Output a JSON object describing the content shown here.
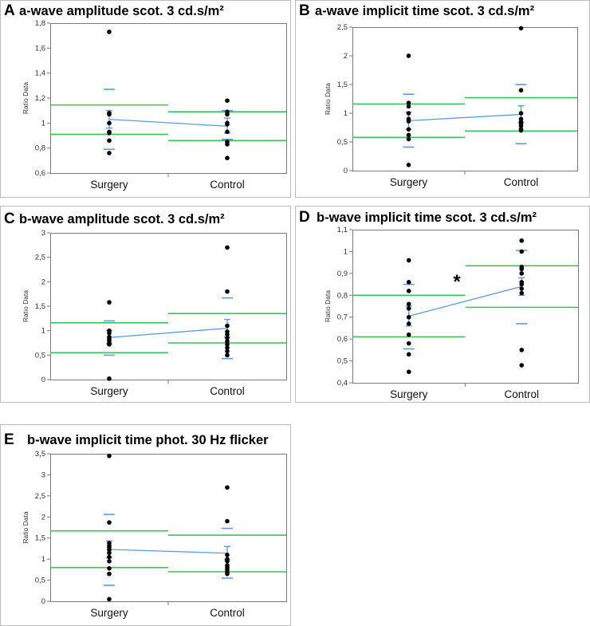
{
  "colors": {
    "green": "#3cc25a",
    "blue": "#5b9be6",
    "dot": "#000000",
    "axis": "#7a7a7a"
  },
  "chart_data": [
    {
      "id": "A",
      "letter": "A",
      "type": "scatter",
      "title": "a-wave amplitude scot. 3 cd.s/m²",
      "ylabel": "Ratio Data",
      "ylim": [
        0.6,
        1.8
      ],
      "yticks": [
        0.6,
        0.8,
        1,
        1.2,
        1.4,
        1.6,
        1.8
      ],
      "ytick_labels": [
        "0,6",
        "0,8",
        "1",
        "1,2",
        "1,4",
        "1,6",
        "1,8"
      ],
      "categories": [
        "Surgery",
        "Control"
      ],
      "points": [
        [
          1.73,
          1.08,
          1.07,
          1.0,
          0.93,
          0.92,
          0.86,
          0.76
        ],
        [
          1.18,
          1.09,
          1.07,
          1.0,
          0.99,
          0.93,
          0.85,
          0.83,
          0.72
        ]
      ],
      "means": [
        1.03,
        0.975
      ],
      "sem": [
        [
          0.96,
          1.1
        ],
        [
          0.92,
          1.04
        ]
      ],
      "sd": [
        [
          0.79,
          1.27
        ],
        [
          0.87,
          1.1
        ]
      ],
      "green": [
        [
          0.91,
          1.145
        ],
        [
          0.86,
          1.09
        ]
      ],
      "annotation": ""
    },
    {
      "id": "B",
      "letter": "B",
      "type": "scatter",
      "title": "a-wave implicit time scot. 3 cd.s/m²",
      "ylabel": "Ratio Data",
      "ylim": [
        0,
        2.5
      ],
      "yticks": [
        0,
        0.5,
        1,
        1.5,
        2,
        2.5
      ],
      "ytick_labels": [
        "0",
        "0,5",
        "1",
        "1,5",
        "2",
        "2,5"
      ],
      "categories": [
        "Surgery",
        "Control"
      ],
      "points": [
        [
          2.0,
          1.18,
          1.12,
          1.0,
          0.9,
          0.86,
          0.72,
          0.62,
          0.55,
          0.1
        ],
        [
          2.48,
          1.4,
          1.0,
          0.9,
          0.85,
          0.82,
          0.78,
          0.72,
          0.7
        ]
      ],
      "means": [
        0.87,
        0.98
      ],
      "sem": [
        [
          0.72,
          1.02
        ],
        [
          0.84,
          1.13
        ]
      ],
      "sd": [
        [
          0.41,
          1.33
        ],
        [
          0.47,
          1.5
        ]
      ],
      "green": [
        [
          0.58,
          1.16
        ],
        [
          0.69,
          1.27
        ]
      ],
      "annotation": ""
    },
    {
      "id": "C",
      "letter": "C",
      "type": "scatter",
      "title": "b-wave amplitude scot. 3 cd.s/m²",
      "ylabel": "Ratio Data",
      "ylim": [
        0,
        3
      ],
      "yticks": [
        0,
        0.5,
        1,
        1.5,
        2,
        2.5,
        3
      ],
      "ytick_labels": [
        "0",
        "0,5",
        "1",
        "1,5",
        "2",
        "2,5",
        "3"
      ],
      "categories": [
        "Surgery",
        "Control"
      ],
      "points": [
        [
          1.58,
          1.0,
          0.95,
          0.87,
          0.83,
          0.8,
          0.75,
          0.72,
          0.02
        ],
        [
          2.7,
          1.8,
          1.1,
          0.98,
          0.92,
          0.85,
          0.78,
          0.72,
          0.65,
          0.58,
          0.5
        ]
      ],
      "means": [
        0.86,
        1.05
      ],
      "sem": [
        [
          0.73,
          1.0
        ],
        [
          0.87,
          1.23
        ]
      ],
      "sd": [
        [
          0.5,
          1.2
        ],
        [
          0.43,
          1.67
        ]
      ],
      "green": [
        [
          0.55,
          1.16
        ],
        [
          0.75,
          1.35
        ]
      ],
      "annotation": ""
    },
    {
      "id": "D",
      "letter": "D",
      "type": "scatter",
      "title": "b-wave implicit time scot. 3 cd.s/m²",
      "ylabel": "Ratio Data",
      "ylim": [
        0.4,
        1.1
      ],
      "yticks": [
        0.4,
        0.5,
        0.6,
        0.7,
        0.8,
        0.9,
        1,
        1.1
      ],
      "ytick_labels": [
        "0,4",
        "0,5",
        "0,6",
        "0,7",
        "0,8",
        "0,9",
        "1",
        "1,1"
      ],
      "categories": [
        "Surgery",
        "Control"
      ],
      "points": [
        [
          0.96,
          0.86,
          0.82,
          0.76,
          0.74,
          0.7,
          0.67,
          0.62,
          0.58,
          0.53,
          0.45
        ],
        [
          1.05,
          1.0,
          0.93,
          0.92,
          0.9,
          0.86,
          0.85,
          0.83,
          0.81,
          0.55,
          0.48
        ]
      ],
      "means": [
        0.705,
        0.84
      ],
      "sem": [
        [
          0.66,
          0.75
        ],
        [
          0.8,
          0.88
        ]
      ],
      "sd": [
        [
          0.555,
          0.85
        ],
        [
          0.67,
          1.005
        ]
      ],
      "green": [
        [
          0.61,
          0.8
        ],
        [
          0.745,
          0.935
        ]
      ],
      "annotation": "*"
    },
    {
      "id": "E",
      "letter": "E",
      "type": "scatter",
      "title": "b-wave implicit time phot. 30 Hz flicker",
      "ylabel": "Ratio Data",
      "ylim": [
        0,
        3.5
      ],
      "yticks": [
        0,
        0.5,
        1,
        1.5,
        2,
        2.5,
        3,
        3.5
      ],
      "ytick_labels": [
        "0",
        "0,5",
        "1",
        "1,5",
        "2",
        "2,5",
        "3",
        "3,5"
      ],
      "categories": [
        "Surgery",
        "Control"
      ],
      "points": [
        [
          3.45,
          1.87,
          1.38,
          1.32,
          1.28,
          1.22,
          1.15,
          1.05,
          0.95,
          0.78,
          0.65,
          0.05
        ],
        [
          2.7,
          1.9,
          1.1,
          1.0,
          0.95,
          0.85,
          0.8,
          0.75,
          0.7,
          0.65
        ]
      ],
      "means": [
        1.23,
        1.14
      ],
      "sem": [
        [
          1.03,
          1.43
        ],
        [
          0.98,
          1.3
        ]
      ],
      "sd": [
        [
          0.38,
          2.06
        ],
        [
          0.55,
          1.73
        ]
      ],
      "green": [
        [
          0.8,
          1.67
        ],
        [
          0.7,
          1.57
        ]
      ],
      "annotation": ""
    }
  ]
}
